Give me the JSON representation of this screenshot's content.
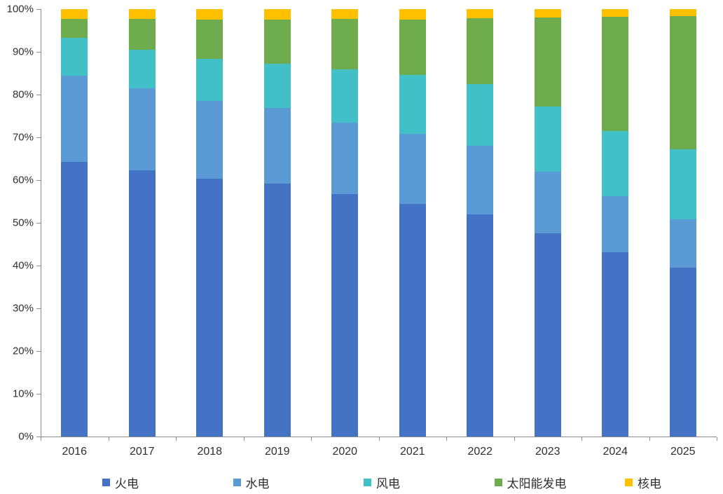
{
  "chart_data": {
    "type": "bar",
    "variant": "stacked-100-percent-column",
    "title": "",
    "xlabel": "",
    "ylabel": "",
    "ylim": [
      0,
      100
    ],
    "ytick_labels": [
      "0%",
      "10%",
      "20%",
      "30%",
      "40%",
      "50%",
      "60%",
      "70%",
      "80%",
      "90%",
      "100%"
    ],
    "grid": false,
    "legend_position": "bottom",
    "categories": [
      "2016",
      "2017",
      "2018",
      "2019",
      "2020",
      "2021",
      "2022",
      "2023",
      "2024",
      "2025"
    ],
    "series": [
      {
        "name": "火电",
        "color": "#4472C4",
        "values": [
          64.2,
          62.3,
          60.3,
          59.2,
          56.7,
          54.5,
          52.0,
          47.6,
          43.1,
          39.5
        ]
      },
      {
        "name": "水电",
        "color": "#5B9BD5",
        "values": [
          20.2,
          19.2,
          18.3,
          17.7,
          16.7,
          16.4,
          16.1,
          14.4,
          13.1,
          11.4
        ]
      },
      {
        "name": "风电",
        "color": "#42C0C8",
        "values": [
          8.9,
          9.0,
          9.7,
          10.3,
          12.5,
          13.7,
          14.3,
          15.2,
          15.3,
          16.4
        ]
      },
      {
        "name": "太阳能发电",
        "color": "#6FAC4D",
        "values": [
          4.4,
          7.2,
          9.2,
          10.3,
          11.8,
          13.0,
          15.4,
          20.8,
          26.7,
          31.1
        ]
      },
      {
        "name": "核电",
        "color": "#FFC000",
        "values": [
          2.3,
          2.3,
          2.5,
          2.5,
          2.3,
          2.4,
          2.2,
          2.0,
          1.8,
          1.6
        ]
      }
    ],
    "colors": {
      "axis_line": "#8c8c8c",
      "text": "#2e2e2e",
      "background": "#ffffff"
    }
  }
}
